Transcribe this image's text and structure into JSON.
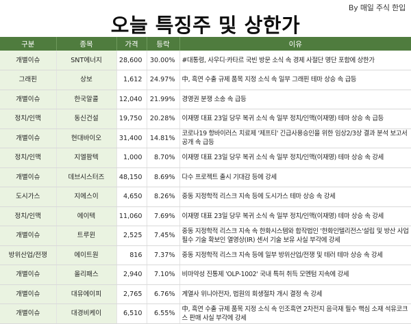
{
  "header": {
    "credit": "By 매일 주식 한입",
    "title": "오늘 특징주 및 상한가"
  },
  "table": {
    "columns": [
      "구분",
      "종목",
      "가격",
      "등락",
      "이유"
    ],
    "rows": [
      {
        "category": "개별이슈",
        "name": "SNT에너지",
        "price": "28,600",
        "change": "30.00%",
        "reason": "#대통령, 사우디·카타르 국빈 방문 소식 속 경제 사절단 명단 포함에 상한가"
      },
      {
        "category": "그래핀",
        "name": "상보",
        "price": "1,612",
        "change": "24.97%",
        "reason": "中, 흑연 수출 규제 품목 지정 소식 속 일부 그래핀 테마 상승 속 급등"
      },
      {
        "category": "개별이슈",
        "name": "한국알콜",
        "price": "12,040",
        "change": "21.99%",
        "reason": "경영권 분쟁 소송 속 급등"
      },
      {
        "category": "정치/인맥",
        "name": "동신건설",
        "price": "19,750",
        "change": "20.28%",
        "reason": "이재명 대표 23일 당무 복귀 소식 속 일부 정치/인맥(이재명) 테마 상승 속 급등"
      },
      {
        "category": "개별이슈",
        "name": "현대바이오",
        "price": "31,400",
        "change": "14.81%",
        "reason": "코로나19 항바이러스 치료제 '제프티' 긴급사용승인을 위한 임상2/3상 결과 분석 보고서 공개 속 급등"
      },
      {
        "category": "정치/인맥",
        "name": "지엘팜텍",
        "price": "1,000",
        "change": "8.70%",
        "reason": "이재명 대표 23일 당무 복귀 소식 속 일부 정치/인맥(이재명) 테마 상승 속 강세"
      },
      {
        "category": "개별이슈",
        "name": "데브시스터즈",
        "price": "48,150",
        "change": "8.69%",
        "reason": "다수 프로젝트 출시 기대감 등에 강세"
      },
      {
        "category": "도시가스",
        "name": "지에스이",
        "price": "4,650",
        "change": "8.26%",
        "reason": "중동 지정학적 리스크 지속 등에 도시가스 테마 상승 속 강세"
      },
      {
        "category": "정치/인맥",
        "name": "에이텍",
        "price": "11,060",
        "change": "7.69%",
        "reason": "이재명 대표 23일 당무 복귀 소식 속 일부 정치/인맥(이재명) 테마 상승 속 강세"
      },
      {
        "category": "개별이슈",
        "name": "트루윈",
        "price": "2,525",
        "change": "7.45%",
        "reason": "중동 지정학적 리스크 지속 속 한화시스템와 합작법인 '한화인텔리전스'설립 및 방산 사업 필수 기술 확보인 열영상(IR) 센서 기술 보유 사실 부각에 강세"
      },
      {
        "category": "방위산업/전쟁",
        "name": "에이트원",
        "price": "816",
        "change": "7.37%",
        "reason": "중동 지정학적 리스크 지속 등에 일부 방위산업/전쟁 및 테러 테마 상승 속 강세"
      },
      {
        "category": "개별이슈",
        "name": "올리패스",
        "price": "2,940",
        "change": "7.10%",
        "reason": "비마약성 진통제 'OLP-1002' 국내 특허 취득 모멘텀 지속에 강세"
      },
      {
        "category": "개별이슈",
        "name": "대유에이피",
        "price": "2,765",
        "change": "6.76%",
        "reason": "계열사 위니아전자, 법원의 회생절차 개시 결정 속 강세"
      },
      {
        "category": "개별이슈",
        "name": "대경비케이",
        "price": "6,510",
        "change": "6.55%",
        "reason": "中, 흑연 수출 규제 품목 지정 소식 속 인조흑연 2차전지 음극재 필수 핵심 소재 석유코크스 판매 사실 부각에 강세"
      }
    ]
  },
  "colors": {
    "header_bg": "#4f7c3e",
    "label_bg": "#eaf3e1"
  }
}
